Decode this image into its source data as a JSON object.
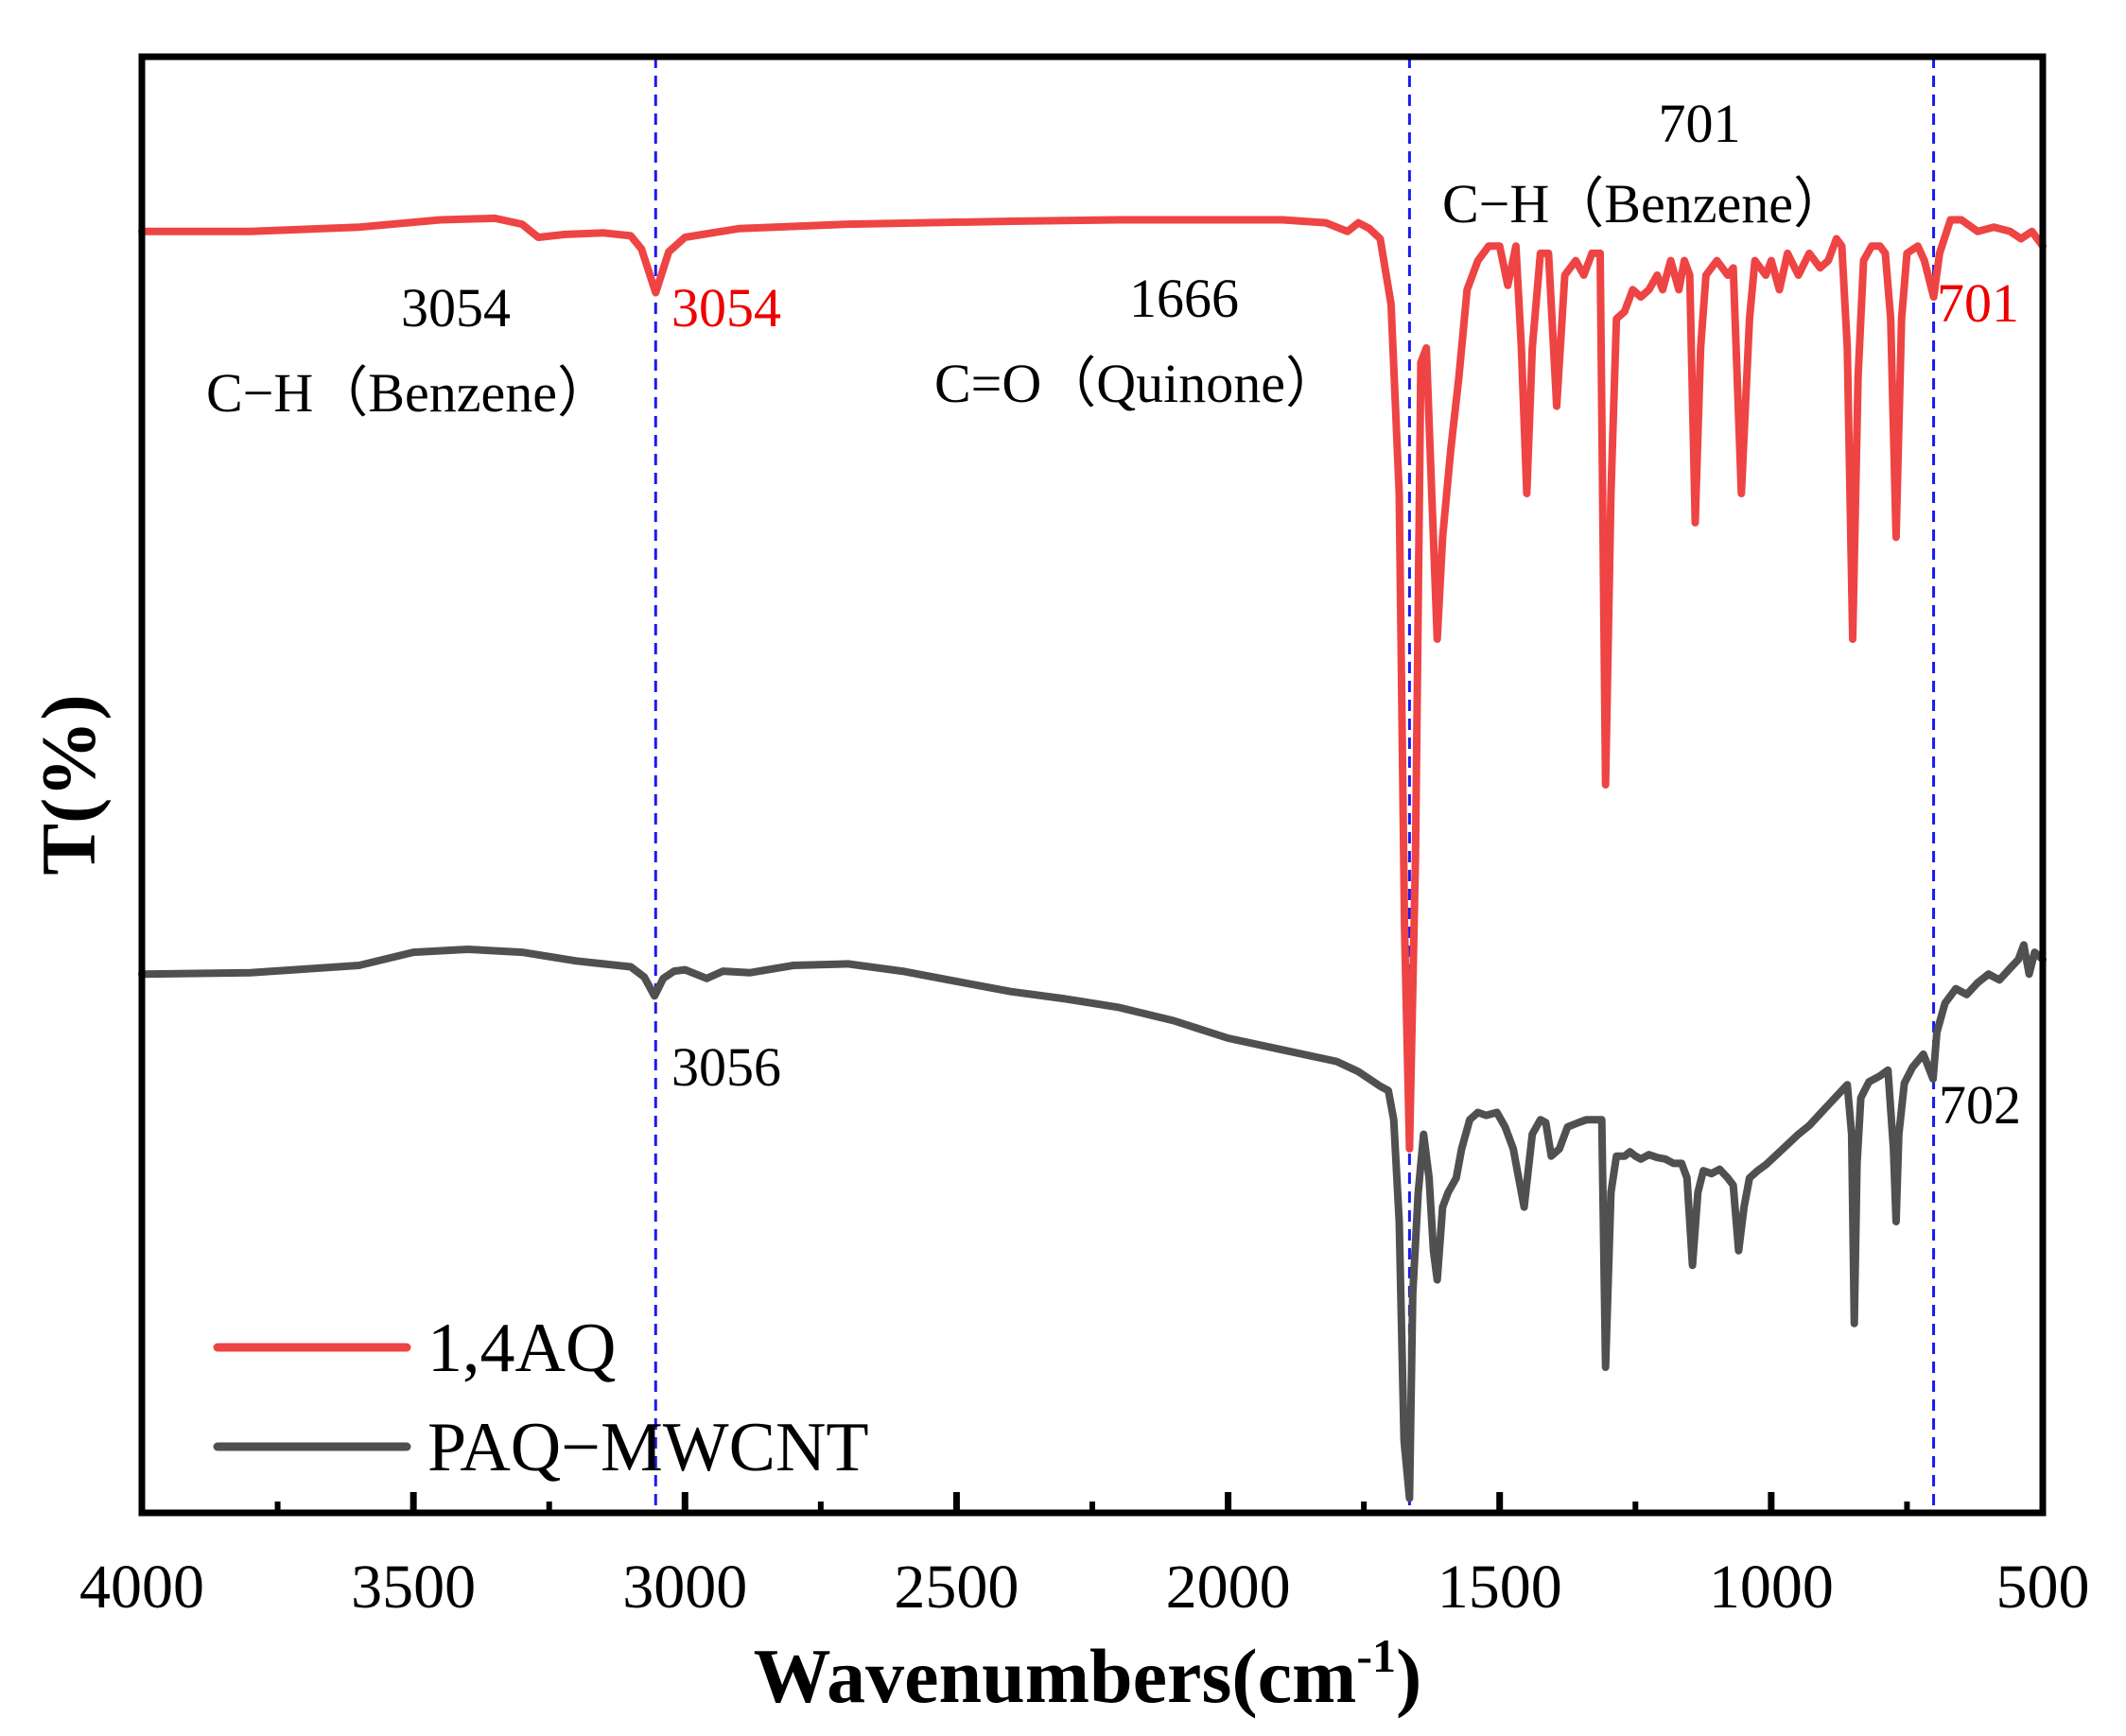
{
  "chart_data": {
    "type": "line",
    "title": "",
    "xlabel": "Wavenumbers(cm",
    "xlabel_sup": "-1",
    "xlabel_close": ")",
    "ylabel": "T(%)",
    "xlim": [
      4000,
      500
    ],
    "ylim": [
      0,
      100
    ],
    "x_ticks": [
      "4000",
      "3500",
      "3000",
      "2500",
      "2000",
      "1500",
      "1000",
      "500"
    ],
    "x_tick_values": [
      4000,
      3500,
      3000,
      2500,
      2000,
      1500,
      1000,
      500
    ],
    "y_ticks_shown": false,
    "reference_lines": [
      {
        "x": 3054,
        "color": "#1a1aee",
        "style": "dashed"
      },
      {
        "x": 1666,
        "color": "#1a1aee",
        "style": "dashed"
      },
      {
        "x": 701,
        "color": "#1a1aee",
        "style": "dashed"
      }
    ],
    "series": [
      {
        "name": "1,4AQ",
        "color": "#ee4444",
        "points": [
          [
            4000,
            88.0
          ],
          [
            3800,
            88.0
          ],
          [
            3600,
            88.3
          ],
          [
            3450,
            88.8
          ],
          [
            3350,
            88.9
          ],
          [
            3300,
            88.5
          ],
          [
            3270,
            87.6
          ],
          [
            3220,
            87.8
          ],
          [
            3150,
            87.9
          ],
          [
            3100,
            87.7
          ],
          [
            3080,
            86.8
          ],
          [
            3054,
            83.8
          ],
          [
            3030,
            86.6
          ],
          [
            3000,
            87.6
          ],
          [
            2900,
            88.2
          ],
          [
            2700,
            88.5
          ],
          [
            2400,
            88.7
          ],
          [
            2200,
            88.8
          ],
          [
            2000,
            88.8
          ],
          [
            1900,
            88.8
          ],
          [
            1820,
            88.6
          ],
          [
            1780,
            88.0
          ],
          [
            1760,
            88.6
          ],
          [
            1740,
            88.2
          ],
          [
            1720,
            87.5
          ],
          [
            1700,
            83.0
          ],
          [
            1685,
            70.0
          ],
          [
            1675,
            40.0
          ],
          [
            1666,
            25.0
          ],
          [
            1655,
            45.0
          ],
          [
            1645,
            79.0
          ],
          [
            1635,
            80.0
          ],
          [
            1625,
            70.0
          ],
          [
            1615,
            60.0
          ],
          [
            1605,
            67.0
          ],
          [
            1590,
            73.0
          ],
          [
            1575,
            78.0
          ],
          [
            1560,
            84.0
          ],
          [
            1540,
            86.0
          ],
          [
            1520,
            87.0
          ],
          [
            1500,
            87.0
          ],
          [
            1485,
            84.3
          ],
          [
            1470,
            87.0
          ],
          [
            1460,
            80.0
          ],
          [
            1450,
            70.0
          ],
          [
            1440,
            80.0
          ],
          [
            1425,
            86.5
          ],
          [
            1410,
            86.5
          ],
          [
            1395,
            76.0
          ],
          [
            1380,
            85.0
          ],
          [
            1360,
            86.0
          ],
          [
            1345,
            85.0
          ],
          [
            1330,
            86.5
          ],
          [
            1315,
            86.5
          ],
          [
            1305,
            50.0
          ],
          [
            1295,
            70.0
          ],
          [
            1285,
            82.0
          ],
          [
            1270,
            82.5
          ],
          [
            1255,
            84.0
          ],
          [
            1240,
            83.5
          ],
          [
            1225,
            84.0
          ],
          [
            1210,
            85.0
          ],
          [
            1200,
            84.0
          ],
          [
            1185,
            86.0
          ],
          [
            1170,
            84.0
          ],
          [
            1160,
            86.0
          ],
          [
            1150,
            85.0
          ],
          [
            1140,
            68.0
          ],
          [
            1130,
            80.0
          ],
          [
            1120,
            85.0
          ],
          [
            1100,
            86.0
          ],
          [
            1080,
            85.0
          ],
          [
            1070,
            85.5
          ],
          [
            1055,
            70.0
          ],
          [
            1040,
            82.0
          ],
          [
            1030,
            86.0
          ],
          [
            1010,
            85.0
          ],
          [
            1000,
            86.0
          ],
          [
            985,
            84.0
          ],
          [
            970,
            86.5
          ],
          [
            950,
            85.0
          ],
          [
            930,
            86.5
          ],
          [
            910,
            85.5
          ],
          [
            895,
            86.0
          ],
          [
            880,
            87.5
          ],
          [
            870,
            87.0
          ],
          [
            860,
            80.0
          ],
          [
            850,
            60.0
          ],
          [
            840,
            78.0
          ],
          [
            830,
            86.0
          ],
          [
            815,
            87.0
          ],
          [
            800,
            87.0
          ],
          [
            790,
            86.5
          ],
          [
            780,
            82.0
          ],
          [
            770,
            67.0
          ],
          [
            760,
            82.0
          ],
          [
            750,
            86.5
          ],
          [
            730,
            87.0
          ],
          [
            718,
            86.0
          ],
          [
            701,
            83.5
          ],
          [
            690,
            86.5
          ],
          [
            670,
            88.8
          ],
          [
            650,
            88.8
          ],
          [
            620,
            88.0
          ],
          [
            590,
            88.3
          ],
          [
            560,
            88.0
          ],
          [
            540,
            87.5
          ],
          [
            520,
            88.0
          ],
          [
            500,
            87.0
          ]
        ]
      },
      {
        "name": "PAQ-MWCNT",
        "color": "#505050",
        "points": [
          [
            4000,
            37.0
          ],
          [
            3800,
            37.1
          ],
          [
            3600,
            37.6
          ],
          [
            3500,
            38.5
          ],
          [
            3400,
            38.7
          ],
          [
            3300,
            38.5
          ],
          [
            3200,
            37.9
          ],
          [
            3100,
            37.5
          ],
          [
            3075,
            36.8
          ],
          [
            3056,
            35.5
          ],
          [
            3040,
            36.7
          ],
          [
            3020,
            37.2
          ],
          [
            3000,
            37.3
          ],
          [
            2960,
            36.7
          ],
          [
            2930,
            37.2
          ],
          [
            2880,
            37.1
          ],
          [
            2800,
            37.6
          ],
          [
            2700,
            37.7
          ],
          [
            2600,
            37.2
          ],
          [
            2500,
            36.5
          ],
          [
            2400,
            35.8
          ],
          [
            2300,
            35.3
          ],
          [
            2200,
            34.7
          ],
          [
            2100,
            33.8
          ],
          [
            2000,
            32.6
          ],
          [
            1900,
            31.8
          ],
          [
            1800,
            31.0
          ],
          [
            1760,
            30.3
          ],
          [
            1740,
            29.8
          ],
          [
            1720,
            29.3
          ],
          [
            1705,
            29.0
          ],
          [
            1695,
            27.0
          ],
          [
            1685,
            20.0
          ],
          [
            1676,
            5.0
          ],
          [
            1666,
            1.0
          ],
          [
            1660,
            15.0
          ],
          [
            1650,
            22.0
          ],
          [
            1640,
            26.0
          ],
          [
            1630,
            23.0
          ],
          [
            1622,
            18.0
          ],
          [
            1615,
            16.0
          ],
          [
            1605,
            21.0
          ],
          [
            1595,
            22.0
          ],
          [
            1580,
            23.0
          ],
          [
            1570,
            25.0
          ],
          [
            1555,
            27.0
          ],
          [
            1540,
            27.5
          ],
          [
            1525,
            27.3
          ],
          [
            1505,
            27.5
          ],
          [
            1490,
            26.5
          ],
          [
            1475,
            25.0
          ],
          [
            1465,
            23.0
          ],
          [
            1455,
            21.0
          ],
          [
            1440,
            26.0
          ],
          [
            1425,
            27.0
          ],
          [
            1415,
            26.8
          ],
          [
            1405,
            24.5
          ],
          [
            1390,
            25.0
          ],
          [
            1375,
            26.5
          ],
          [
            1355,
            26.8
          ],
          [
            1340,
            27.0
          ],
          [
            1325,
            27.0
          ],
          [
            1312,
            27.0
          ],
          [
            1305,
            10.0
          ],
          [
            1295,
            22.0
          ],
          [
            1285,
            24.5
          ],
          [
            1270,
            24.5
          ],
          [
            1260,
            24.8
          ],
          [
            1250,
            24.5
          ],
          [
            1240,
            24.3
          ],
          [
            1225,
            24.6
          ],
          [
            1210,
            24.4
          ],
          [
            1195,
            24.3
          ],
          [
            1180,
            24.0
          ],
          [
            1165,
            24.0
          ],
          [
            1155,
            23.0
          ],
          [
            1145,
            17.0
          ],
          [
            1135,
            22.0
          ],
          [
            1125,
            23.5
          ],
          [
            1110,
            23.3
          ],
          [
            1095,
            23.6
          ],
          [
            1080,
            23.0
          ],
          [
            1070,
            22.5
          ],
          [
            1060,
            18.0
          ],
          [
            1050,
            21.0
          ],
          [
            1040,
            23.0
          ],
          [
            1025,
            23.5
          ],
          [
            1010,
            23.9
          ],
          [
            990,
            24.6
          ],
          [
            970,
            25.3
          ],
          [
            950,
            26.0
          ],
          [
            930,
            26.6
          ],
          [
            910,
            27.4
          ],
          [
            890,
            28.2
          ],
          [
            870,
            29.0
          ],
          [
            860,
            29.4
          ],
          [
            852,
            26.0
          ],
          [
            847,
            13.0
          ],
          [
            842,
            24.0
          ],
          [
            835,
            28.5
          ],
          [
            820,
            29.6
          ],
          [
            800,
            30.0
          ],
          [
            785,
            30.4
          ],
          [
            775,
            25.0
          ],
          [
            770,
            20.0
          ],
          [
            765,
            26.0
          ],
          [
            755,
            29.5
          ],
          [
            740,
            30.6
          ],
          [
            720,
            31.5
          ],
          [
            702,
            29.8
          ],
          [
            695,
            33.0
          ],
          [
            680,
            35.0
          ],
          [
            660,
            36.0
          ],
          [
            640,
            35.6
          ],
          [
            620,
            36.4
          ],
          [
            600,
            37.0
          ],
          [
            580,
            36.6
          ],
          [
            560,
            37.4
          ],
          [
            545,
            38.0
          ],
          [
            535,
            39.0
          ],
          [
            525,
            37.0
          ],
          [
            515,
            38.5
          ],
          [
            500,
            38.0
          ]
        ]
      }
    ],
    "annotations": [
      {
        "lines": [
          "3054",
          "C−H（Benzene）"
        ],
        "color": "#000000"
      },
      {
        "lines": [
          "3054"
        ],
        "color": "#ee0000"
      },
      {
        "lines": [
          "1666",
          "C=O（Quinone）"
        ],
        "color": "#000000"
      },
      {
        "lines": [
          "701",
          "C−H（Benzene）"
        ],
        "color": "#000000"
      },
      {
        "lines": [
          "701"
        ],
        "color": "#ee0000"
      },
      {
        "lines": [
          "3056"
        ],
        "color": "#000000"
      },
      {
        "lines": [
          "702"
        ],
        "color": "#000000"
      }
    ],
    "legend": {
      "position": "bottom-left",
      "entries": [
        {
          "label": "1,4AQ",
          "color": "#ee4444"
        },
        {
          "label": "PAQ−MWCNT",
          "color": "#505050"
        }
      ]
    }
  }
}
